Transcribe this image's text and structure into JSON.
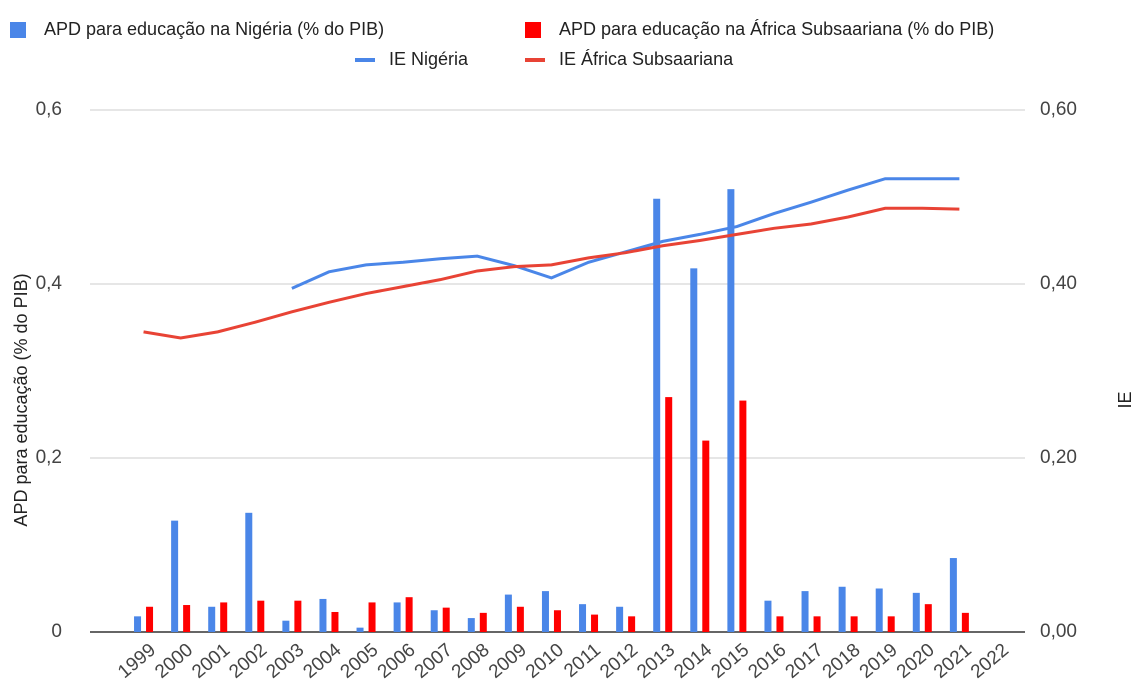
{
  "chart_data": {
    "type": "combo",
    "categories": [
      "1999",
      "2000",
      "2001",
      "2002",
      "2003",
      "2004",
      "2005",
      "2006",
      "2007",
      "2008",
      "2009",
      "2010",
      "2011",
      "2012",
      "2013",
      "2014",
      "2015",
      "2016",
      "2017",
      "2018",
      "2019",
      "2020",
      "2021",
      "2022"
    ],
    "series": [
      {
        "name": "APD para educação na Nigéria (% do PIB)",
        "type": "bar",
        "color": "#4a86e8",
        "values": [
          0.018,
          0.128,
          0.029,
          0.137,
          0.013,
          0.038,
          0.005,
          0.034,
          0.025,
          0.016,
          0.043,
          0.047,
          0.032,
          0.029,
          0.498,
          0.418,
          0.509,
          0.036,
          0.047,
          0.052,
          0.05,
          0.045,
          0.085,
          null
        ]
      },
      {
        "name": "APD para educação na África Subsaariana (% do PIB)",
        "type": "bar",
        "color": "#ff0000",
        "values": [
          0.029,
          0.031,
          0.034,
          0.036,
          0.036,
          0.023,
          0.034,
          0.04,
          0.028,
          0.022,
          0.029,
          0.025,
          0.02,
          0.018,
          0.27,
          0.22,
          0.266,
          0.018,
          0.018,
          0.018,
          0.018,
          0.032,
          0.022,
          null
        ]
      },
      {
        "name": "IE Nigéria",
        "type": "line",
        "axis": "y2",
        "color": "#4a86e8",
        "values": [
          null,
          null,
          null,
          null,
          0.395,
          0.414,
          0.422,
          0.425,
          0.429,
          0.432,
          0.421,
          0.407,
          0.425,
          0.437,
          0.449,
          0.457,
          0.466,
          0.481,
          0.494,
          0.508,
          0.521,
          0.521,
          0.521,
          null
        ]
      },
      {
        "name": "IE África Subsaariana",
        "type": "line",
        "axis": "y2",
        "color": "#e84335",
        "values": [
          0.345,
          0.338,
          0.345,
          0.356,
          0.368,
          0.379,
          0.389,
          0.397,
          0.405,
          0.415,
          0.42,
          0.422,
          0.43,
          0.436,
          0.444,
          0.45,
          0.457,
          0.464,
          0.469,
          0.477,
          0.487,
          0.487,
          0.486,
          null
        ]
      }
    ],
    "ylabel": "APD para educação (% do PIB)",
    "y2label": "IE",
    "ylim": [
      0,
      0.6
    ],
    "yticks": [
      {
        "value": 0,
        "label": "0"
      },
      {
        "value": 0.2,
        "label": "0,2"
      },
      {
        "value": 0.4,
        "label": "0,4"
      },
      {
        "value": 0.6,
        "label": "0,6"
      }
    ],
    "y2lim": [
      0,
      0.6
    ],
    "y2ticks": [
      {
        "value": 0,
        "label": "0,00"
      },
      {
        "value": 0.2,
        "label": "0,20"
      },
      {
        "value": 0.4,
        "label": "0,40"
      },
      {
        "value": 0.6,
        "label": "0,60"
      }
    ],
    "grid": true,
    "legend": "top"
  }
}
